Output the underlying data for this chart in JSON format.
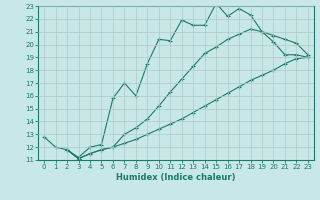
{
  "xlabel": "Humidex (Indice chaleur)",
  "background_color": "#c8e8e8",
  "grid_color": "#b0c8c8",
  "line_color": "#1a7a6a",
  "xlim": [
    -0.5,
    23.5
  ],
  "ylim": [
    11,
    23
  ],
  "xticks": [
    0,
    1,
    2,
    3,
    4,
    5,
    6,
    7,
    8,
    9,
    10,
    11,
    12,
    13,
    14,
    15,
    16,
    17,
    18,
    19,
    20,
    21,
    22,
    23
  ],
  "yticks": [
    11,
    12,
    13,
    14,
    15,
    16,
    17,
    18,
    19,
    20,
    21,
    22,
    23
  ],
  "line1_x": [
    0,
    1,
    2,
    3,
    4,
    5,
    6,
    7,
    8,
    9,
    10,
    11,
    12,
    13,
    14,
    15,
    16,
    17,
    18,
    19,
    20,
    21,
    22,
    23
  ],
  "line1_y": [
    12.8,
    12.0,
    11.8,
    11.2,
    12.0,
    12.2,
    15.8,
    17.0,
    16.0,
    18.5,
    20.4,
    20.3,
    21.9,
    21.5,
    21.5,
    23.2,
    22.2,
    22.8,
    22.3,
    21.0,
    20.2,
    19.2,
    19.2,
    19.0
  ],
  "line2_x": [
    2,
    3,
    4,
    5,
    6,
    7,
    8,
    9,
    10,
    11,
    12,
    13,
    14,
    15,
    16,
    17,
    18,
    19,
    20,
    21,
    22,
    23
  ],
  "line2_y": [
    11.8,
    11.1,
    11.5,
    11.8,
    12.0,
    12.3,
    12.6,
    13.0,
    13.4,
    13.8,
    14.2,
    14.7,
    15.2,
    15.7,
    16.2,
    16.7,
    17.2,
    17.6,
    18.0,
    18.5,
    18.9,
    19.0
  ],
  "line3_x": [
    2,
    3,
    4,
    5,
    6,
    7,
    8,
    9,
    10,
    11,
    12,
    13,
    14,
    15,
    16,
    17,
    18,
    19,
    20,
    21,
    22,
    23
  ],
  "line3_y": [
    11.8,
    11.1,
    11.5,
    11.8,
    12.0,
    13.0,
    13.5,
    14.2,
    15.2,
    16.3,
    17.3,
    18.3,
    19.3,
    19.8,
    20.4,
    20.8,
    21.2,
    21.0,
    20.7,
    20.4,
    20.1,
    19.2
  ]
}
